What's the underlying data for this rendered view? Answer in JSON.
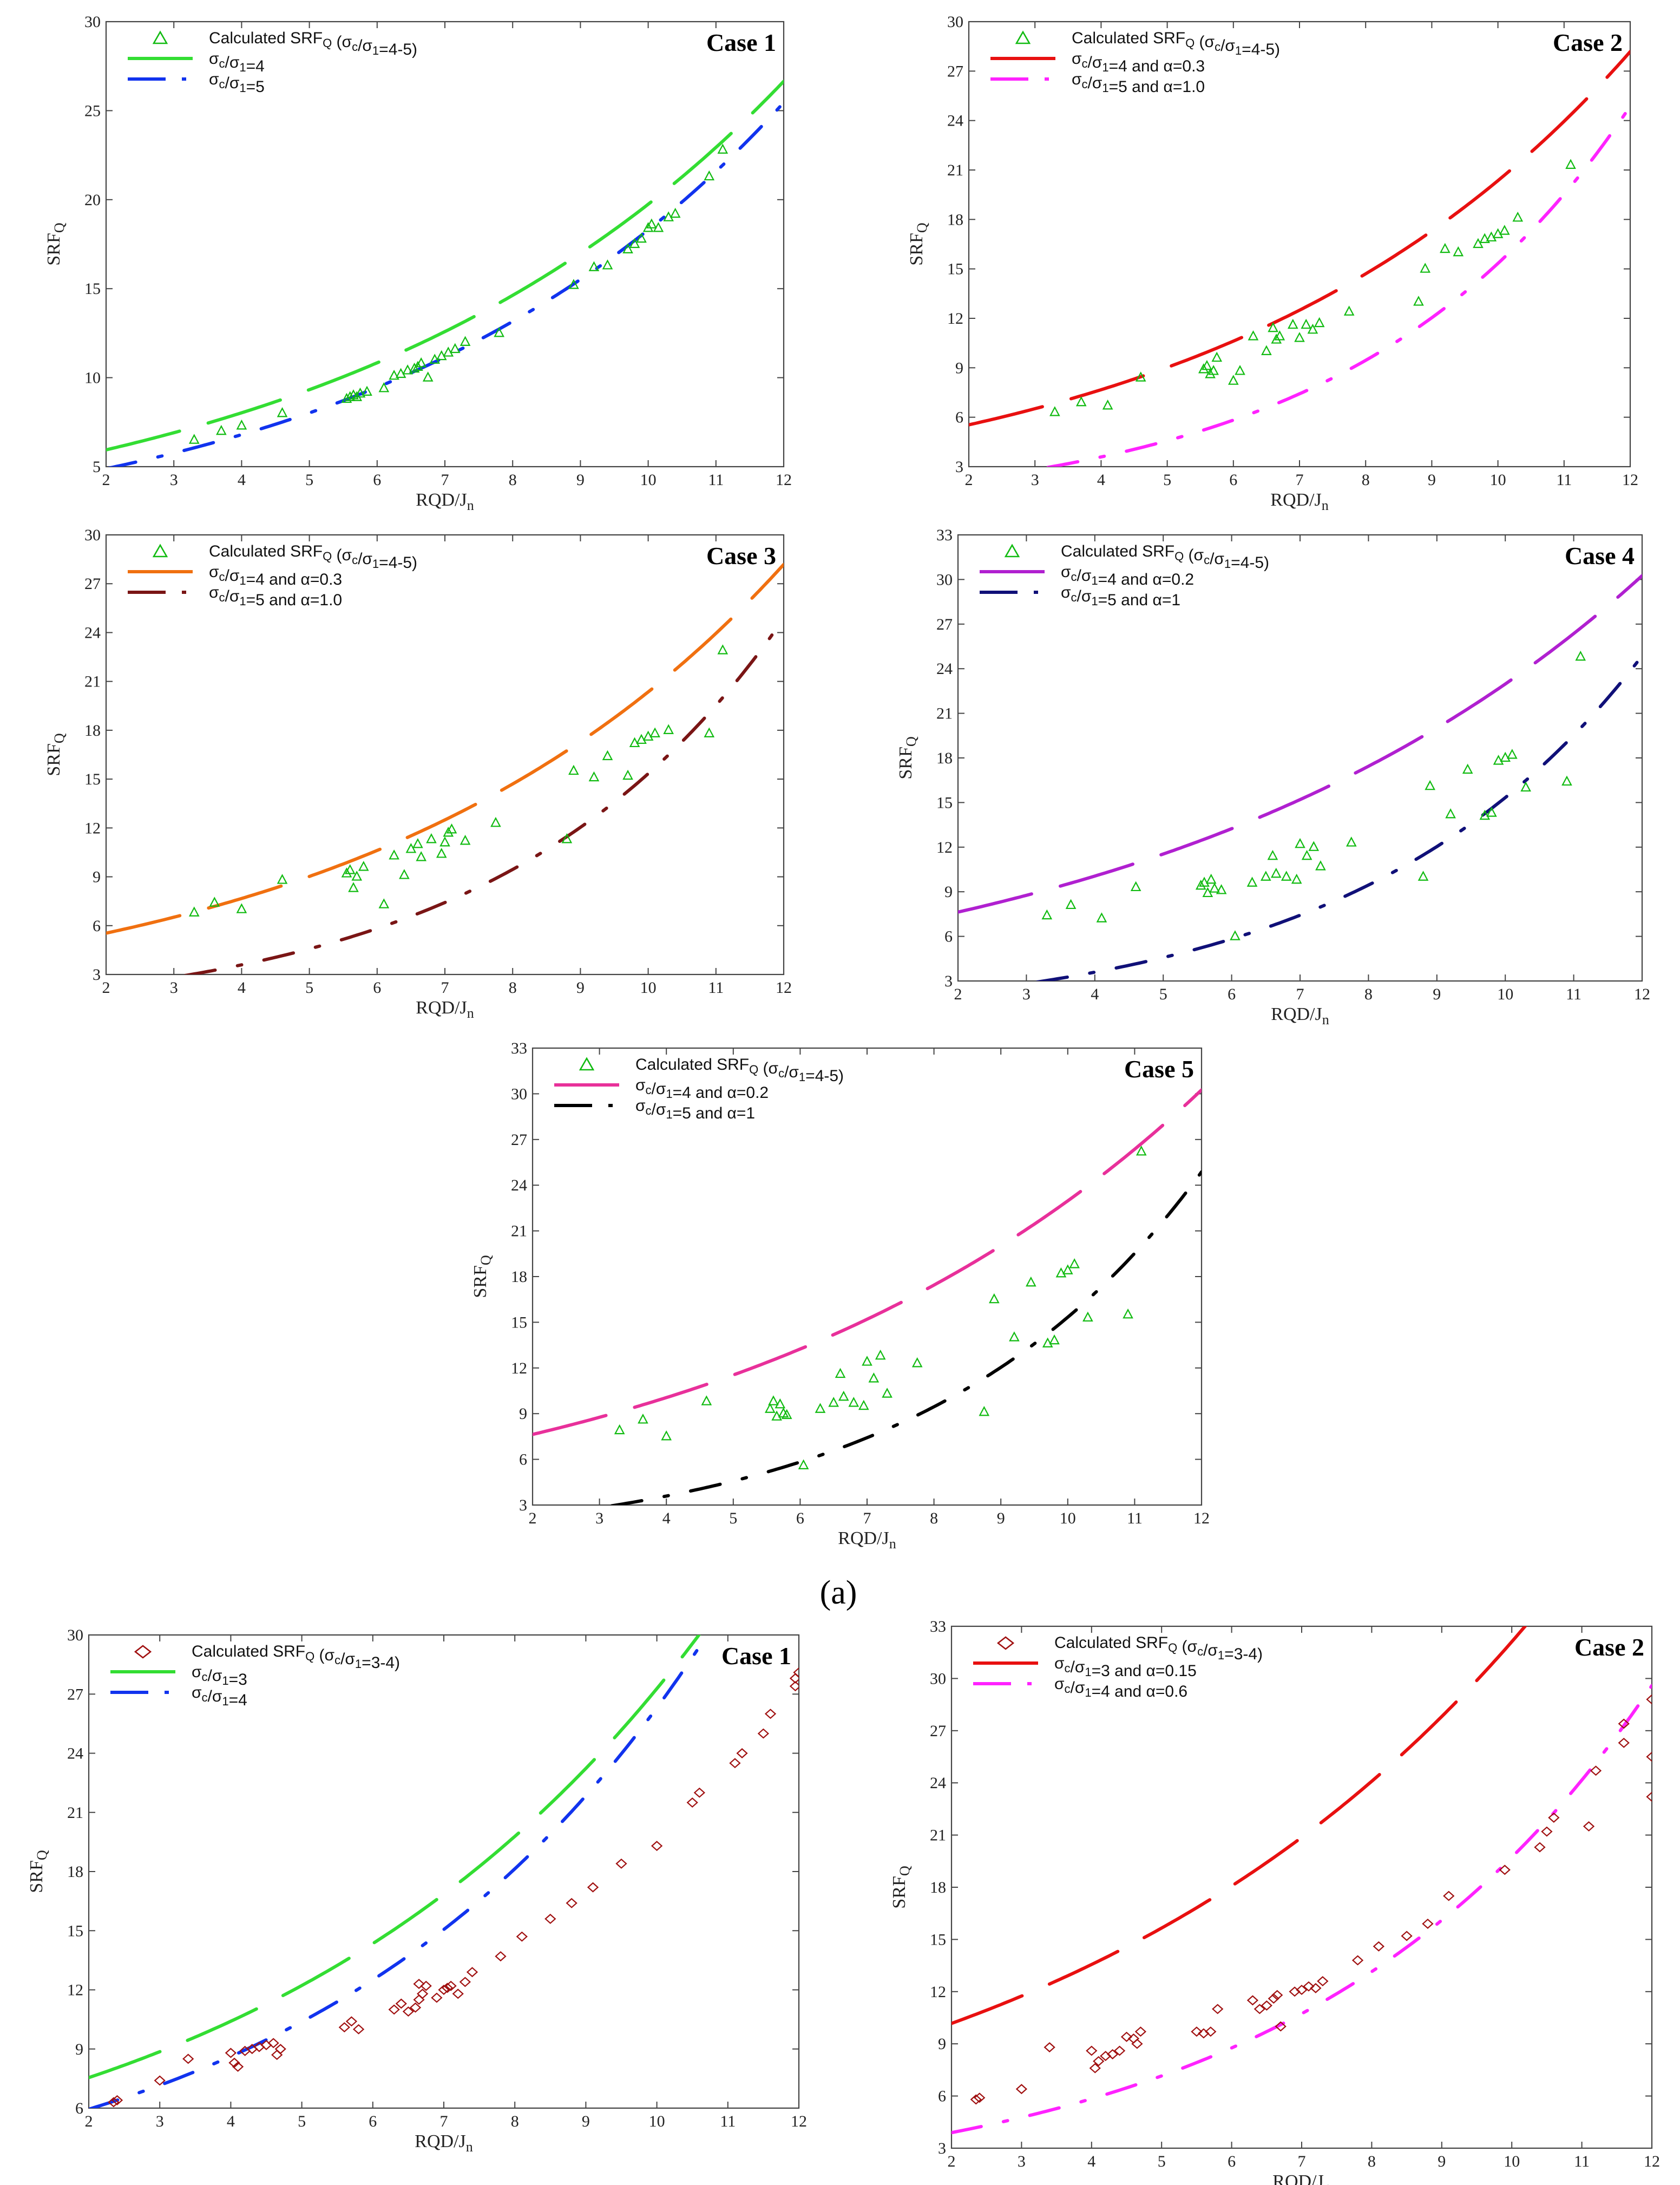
{
  "figure": {
    "part_label": "(a)"
  },
  "chart_data": [
    {
      "id": "a-case1",
      "type": "scatter",
      "title": "Case 1",
      "xlabel": "RQD/Jn",
      "ylabel": "SRFQ",
      "xlim": [
        2,
        12
      ],
      "ylim": [
        5,
        30
      ],
      "xticks": [
        2,
        3,
        4,
        5,
        6,
        7,
        8,
        9,
        10,
        11,
        12
      ],
      "yticks": [
        5,
        10,
        15,
        20,
        25,
        30
      ],
      "legend_position": "top-left",
      "scatter": {
        "name": "Calculated SRFQ (σc/σ1=4-5)",
        "marker": "triangle",
        "color": "#11bb11",
        "x": [
          3.3,
          3.7,
          4.0,
          4.6,
          5.55,
          5.6,
          5.65,
          5.7,
          5.75,
          5.85,
          6.1,
          6.25,
          6.35,
          6.45,
          6.55,
          6.6,
          6.65,
          6.75,
          6.85,
          6.95,
          7.05,
          7.15,
          7.3,
          7.8,
          8.9,
          9.2,
          9.4,
          9.7,
          9.8,
          9.9,
          10.0,
          10.05,
          10.15,
          10.3,
          10.4,
          10.9,
          11.1
        ],
        "y": [
          6.5,
          7.0,
          7.3,
          8.0,
          8.8,
          8.9,
          9.0,
          8.9,
          9.1,
          9.2,
          9.4,
          10.1,
          10.2,
          10.4,
          10.5,
          10.6,
          10.8,
          10.0,
          11.0,
          11.2,
          11.4,
          11.6,
          12.0,
          12.5,
          15.2,
          16.2,
          16.3,
          17.2,
          17.5,
          17.8,
          18.4,
          18.6,
          18.4,
          19.0,
          19.2,
          21.3,
          22.8
        ]
      },
      "series": [
        {
          "name": "σc/σ1=4",
          "color": "#33dd33",
          "style": "long-dash",
          "coeffs": [
            4.4048,
            0.15
          ]
        },
        {
          "name": "σc/σ1=5",
          "color": "#1133ee",
          "style": "dash-dot",
          "coeffs": [
            3.5143,
            0.165
          ]
        }
      ]
    },
    {
      "id": "a-case2",
      "type": "scatter",
      "title": "Case 2",
      "xlabel": "RQD/Jn",
      "ylabel": "SRFQ",
      "xlim": [
        2,
        12
      ],
      "ylim": [
        3,
        30
      ],
      "xticks": [
        2,
        3,
        4,
        5,
        6,
        7,
        8,
        9,
        10,
        11,
        12
      ],
      "yticks": [
        3,
        6,
        9,
        12,
        15,
        18,
        21,
        24,
        27,
        30
      ],
      "legend_position": "top-left",
      "scatter": {
        "name": "Calculated SRFQ (σc/σ1=4-5)",
        "marker": "triangle",
        "color": "#11bb11",
        "x": [
          3.3,
          3.7,
          4.1,
          4.6,
          5.55,
          5.6,
          5.65,
          5.7,
          5.75,
          6.0,
          6.1,
          6.3,
          6.5,
          6.6,
          6.65,
          6.7,
          6.9,
          7.0,
          7.1,
          7.2,
          7.3,
          7.75,
          8.8,
          8.9,
          9.2,
          9.4,
          9.7,
          9.8,
          9.9,
          10.0,
          10.1,
          10.3,
          11.1
        ],
        "y": [
          6.3,
          6.9,
          6.7,
          8.4,
          8.9,
          9.1,
          8.6,
          8.8,
          9.6,
          8.2,
          8.8,
          10.9,
          10.0,
          11.4,
          10.7,
          10.9,
          11.6,
          10.8,
          11.6,
          11.3,
          11.7,
          12.4,
          13.0,
          15.0,
          16.2,
          16.0,
          16.5,
          16.8,
          16.9,
          17.1,
          17.3,
          18.1,
          21.3
        ]
      },
      "series": [
        {
          "name": "σc/σ1=4 and α=0.3",
          "color": "#e81010",
          "style": "long-dash",
          "coeffs": [
            4.0,
            0.1627
          ]
        },
        {
          "name": "σc/σ1=5 and α=1.0",
          "color": "#ff22ff",
          "style": "dash-dot",
          "coeffs": [
            1.3647,
            0.2419
          ]
        }
      ]
    },
    {
      "id": "a-case3",
      "type": "scatter",
      "title": "Case 3",
      "xlabel": "RQD/Jn",
      "ylabel": "SRFQ",
      "xlim": [
        2,
        12
      ],
      "ylim": [
        3,
        30
      ],
      "xticks": [
        2,
        3,
        4,
        5,
        6,
        7,
        8,
        9,
        10,
        11,
        12
      ],
      "yticks": [
        3,
        6,
        9,
        12,
        15,
        18,
        21,
        24,
        27,
        30
      ],
      "legend_position": "top-left",
      "scatter": {
        "name": "Calculated SRFQ (σc/σ1=4-5)",
        "marker": "triangle",
        "color": "#11bb11",
        "x": [
          3.3,
          3.6,
          4.0,
          4.6,
          5.55,
          5.6,
          5.65,
          5.7,
          5.8,
          6.1,
          6.25,
          6.4,
          6.5,
          6.6,
          6.65,
          6.8,
          6.95,
          7.0,
          7.05,
          7.1,
          7.3,
          7.75,
          8.8,
          8.9,
          9.2,
          9.4,
          9.7,
          9.8,
          9.9,
          10.0,
          10.1,
          10.3,
          10.9,
          11.1
        ],
        "y": [
          6.8,
          7.4,
          7.0,
          8.8,
          9.2,
          9.4,
          8.3,
          9.0,
          9.6,
          7.3,
          10.3,
          9.1,
          10.7,
          11.0,
          10.2,
          11.3,
          10.4,
          11.1,
          11.7,
          11.9,
          11.2,
          12.3,
          11.3,
          15.5,
          15.1,
          16.4,
          15.2,
          17.2,
          17.4,
          17.6,
          17.8,
          18.0,
          17.8,
          22.9
        ]
      },
      "series": [
        {
          "name": "σc/σ1=4 and α=0.3",
          "color": "#f07010",
          "style": "long-dash",
          "coeffs": [
            4.0,
            0.1627
          ]
        },
        {
          "name": "σc/σ1=5 and α=1.0",
          "color": "#7a1515",
          "style": "dash-dot",
          "coeffs": [
            1.3647,
            0.2419
          ]
        }
      ]
    },
    {
      "id": "a-case4",
      "type": "scatter",
      "title": "Case 4",
      "xlabel": "RQD/Jn",
      "ylabel": "SRFQ",
      "xlim": [
        2,
        12
      ],
      "ylim": [
        3,
        33
      ],
      "xticks": [
        2,
        3,
        4,
        5,
        6,
        7,
        8,
        9,
        10,
        11,
        12
      ],
      "yticks": [
        3,
        6,
        9,
        12,
        15,
        18,
        21,
        24,
        27,
        30,
        33
      ],
      "legend_position": "top-left",
      "scatter": {
        "name": "Calculated SRFQ (σc/σ1=4-5)",
        "marker": "triangle",
        "color": "#11bb11",
        "x": [
          3.3,
          3.65,
          4.1,
          4.6,
          5.55,
          5.6,
          5.65,
          5.7,
          5.75,
          5.85,
          6.05,
          6.3,
          6.5,
          6.6,
          6.65,
          6.8,
          6.95,
          7.0,
          7.1,
          7.2,
          7.3,
          7.75,
          8.8,
          8.9,
          9.2,
          9.45,
          9.7,
          9.8,
          9.9,
          10.0,
          10.1,
          10.3,
          10.9,
          11.1
        ],
        "y": [
          7.4,
          8.1,
          7.2,
          9.3,
          9.4,
          9.6,
          8.9,
          9.8,
          9.2,
          9.1,
          6.0,
          9.6,
          10.0,
          11.4,
          10.2,
          10.0,
          9.8,
          12.2,
          11.4,
          12.0,
          10.7,
          12.3,
          10.0,
          16.1,
          14.2,
          17.2,
          14.1,
          14.3,
          17.8,
          18.0,
          18.2,
          16.0,
          16.4,
          24.8
        ]
      },
      "series": [
        {
          "name": "σc/σ1=4 and α=0.2",
          "color": "#b020d0",
          "style": "long-dash",
          "coeffs": [
            5.7963,
            0.1377
          ]
        },
        {
          "name": "σc/σ1=5 and α=1",
          "color": "#101078",
          "style": "dash-dot",
          "coeffs": [
            1.3647,
            0.2419
          ]
        }
      ]
    },
    {
      "id": "a-case5",
      "type": "scatter",
      "title": "Case 5",
      "xlabel": "RQD/Jn",
      "ylabel": "SRFQ",
      "xlim": [
        2,
        12
      ],
      "ylim": [
        3,
        33
      ],
      "xticks": [
        2,
        3,
        4,
        5,
        6,
        7,
        8,
        9,
        10,
        11,
        12
      ],
      "yticks": [
        3,
        6,
        9,
        12,
        15,
        18,
        21,
        24,
        27,
        30,
        33
      ],
      "legend_position": "top-left",
      "scatter": {
        "name": "Calculated SRFQ (σc/σ1=4-5)",
        "marker": "triangle",
        "color": "#11bb11",
        "x": [
          3.3,
          3.65,
          4.0,
          4.6,
          5.55,
          5.6,
          5.65,
          5.7,
          5.75,
          5.8,
          6.05,
          6.3,
          6.5,
          6.6,
          6.65,
          6.8,
          6.95,
          7.0,
          7.1,
          7.2,
          7.3,
          7.75,
          8.75,
          8.9,
          9.2,
          9.45,
          9.7,
          9.8,
          9.9,
          10.0,
          10.1,
          10.3,
          10.9,
          11.1
        ],
        "y": [
          7.9,
          8.6,
          7.5,
          9.8,
          9.3,
          9.8,
          8.8,
          9.6,
          9.0,
          8.9,
          5.6,
          9.3,
          9.7,
          11.6,
          10.1,
          9.7,
          9.5,
          12.4,
          11.3,
          12.8,
          10.3,
          12.3,
          9.1,
          16.5,
          14.0,
          17.6,
          13.6,
          13.8,
          18.2,
          18.4,
          18.8,
          15.3,
          15.5,
          26.2
        ]
      },
      "series": [
        {
          "name": "σc/σ1=4 and α=0.2",
          "color": "#e8309a",
          "style": "long-dash",
          "coeffs": [
            5.7963,
            0.1377
          ]
        },
        {
          "name": "σc/σ1=5 and α=1",
          "color": "#000000",
          "style": "dash-dot",
          "coeffs": [
            1.3647,
            0.2419
          ]
        }
      ]
    },
    {
      "id": "b-case1",
      "type": "scatter",
      "title": "Case 1",
      "xlabel": "RQD/Jn",
      "ylabel": "SRFQ",
      "xlim": [
        2,
        12
      ],
      "ylim": [
        6,
        30
      ],
      "xticks": [
        2,
        3,
        4,
        5,
        6,
        7,
        8,
        9,
        10,
        11,
        12
      ],
      "yticks": [
        6,
        9,
        12,
        15,
        18,
        21,
        24,
        27,
        30
      ],
      "legend_position": "top-left",
      "scatter": {
        "name": "Calculated SRFQ (σc/σ1=3-4)",
        "marker": "diamond",
        "color": "#a01010",
        "x": [
          2.35,
          2.4,
          3.0,
          3.4,
          4.0,
          4.05,
          4.1,
          4.2,
          4.3,
          4.4,
          4.5,
          4.6,
          4.65,
          4.7,
          5.6,
          5.7,
          5.8,
          6.3,
          6.4,
          6.5,
          6.6,
          6.65,
          6.65,
          6.7,
          6.75,
          6.9,
          7.0,
          7.05,
          7.1,
          7.2,
          7.3,
          7.4,
          7.8,
          8.1,
          8.5,
          8.8,
          9.1,
          9.5,
          10.0,
          10.5,
          10.6,
          11.1,
          11.2,
          11.5,
          11.6,
          11.95,
          11.95,
          12.0
        ],
        "y": [
          6.3,
          6.4,
          7.4,
          8.5,
          8.8,
          8.3,
          8.1,
          8.9,
          9.0,
          9.1,
          9.2,
          9.3,
          8.7,
          9.0,
          10.1,
          10.4,
          10.0,
          11.0,
          11.3,
          10.9,
          11.1,
          11.5,
          12.3,
          11.8,
          12.2,
          11.6,
          12.0,
          12.1,
          12.2,
          11.8,
          12.4,
          12.9,
          13.7,
          14.7,
          15.6,
          16.4,
          17.2,
          18.4,
          19.3,
          21.5,
          22.0,
          23.5,
          24.0,
          25.0,
          26.0,
          27.4,
          27.8,
          28.1
        ]
      },
      "series": [
        {
          "name": "σc/σ1=3",
          "color": "#33dd33",
          "style": "long-dash",
          "coeffs": [
            5.4741,
            0.1606
          ]
        },
        {
          "name": "σc/σ1=4",
          "color": "#1133ee",
          "style": "dash-dot",
          "coeffs": [
            4.0993,
            0.1859
          ]
        }
      ]
    },
    {
      "id": "b-case2",
      "type": "scatter",
      "title": "Case 2",
      "xlabel": "RQD/Jn",
      "ylabel": "SRFQ",
      "xlim": [
        2,
        12
      ],
      "ylim": [
        3,
        33
      ],
      "xticks": [
        2,
        3,
        4,
        5,
        6,
        7,
        8,
        9,
        10,
        11,
        12
      ],
      "yticks": [
        3,
        6,
        9,
        12,
        15,
        18,
        21,
        24,
        27,
        30,
        33
      ],
      "legend_position": "top-left",
      "scatter": {
        "name": "Calculated SRFQ (σc/σ1=3-4)",
        "marker": "diamond",
        "color": "#a01010",
        "x": [
          2.35,
          2.4,
          3.0,
          3.4,
          4.0,
          4.05,
          4.1,
          4.2,
          4.3,
          4.4,
          4.5,
          4.6,
          4.65,
          4.7,
          5.5,
          5.6,
          5.7,
          5.8,
          6.3,
          6.4,
          6.5,
          6.6,
          6.65,
          6.7,
          6.9,
          7.0,
          7.1,
          7.2,
          7.3,
          7.8,
          8.1,
          8.5,
          8.8,
          9.1,
          9.9,
          10.4,
          10.5,
          10.6,
          11.1,
          11.2,
          11.6,
          11.6,
          12.0,
          12.0,
          12.0
        ],
        "y": [
          5.8,
          5.9,
          6.4,
          8.8,
          8.6,
          7.6,
          8.0,
          8.3,
          8.4,
          8.6,
          9.4,
          9.3,
          9.0,
          9.7,
          9.7,
          9.6,
          9.7,
          11.0,
          11.5,
          11.0,
          11.2,
          11.6,
          11.8,
          10.0,
          12.0,
          12.1,
          12.3,
          12.2,
          12.6,
          13.8,
          14.6,
          15.2,
          15.9,
          17.5,
          19.0,
          20.3,
          21.2,
          22.0,
          21.5,
          24.7,
          26.3,
          27.4,
          23.2,
          25.5,
          28.8
        ]
      },
      "series": [
        {
          "name": "σc/σ1=3 and α=0.15",
          "color": "#e81010",
          "style": "long-dash",
          "coeffs": [
            7.6311,
            0.1437
          ]
        },
        {
          "name": "σc/σ1=4 and α=0.6",
          "color": "#ff22ff",
          "style": "dash-dot",
          "coeffs": [
            2.5957,
            0.2028
          ]
        }
      ]
    }
  ]
}
